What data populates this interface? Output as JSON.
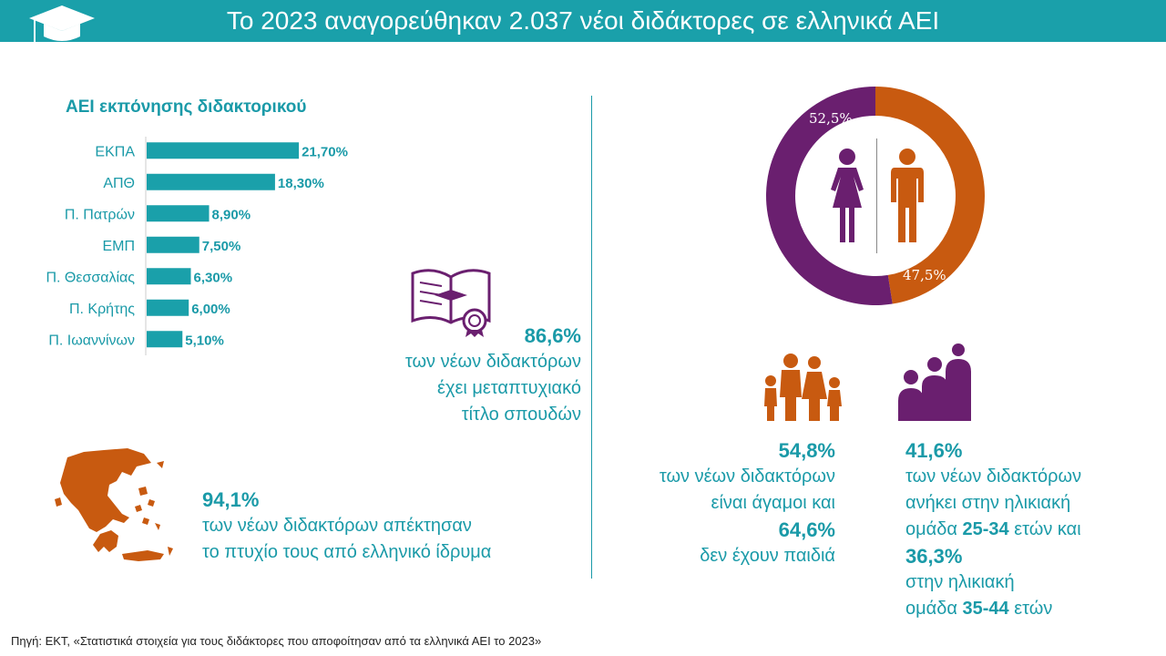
{
  "header": {
    "title": "Το 2023 αναγορεύθηκαν 2.037 νέοι διδάκτορες σε ελληνικά ΑΕΙ"
  },
  "colors": {
    "teal": "#1aa0aa",
    "purple": "#6a1f6f",
    "orange": "#c85a10"
  },
  "icons": [
    "graduation-cap-icon",
    "book-diploma-icon",
    "greece-map-icon",
    "woman-icon",
    "man-icon",
    "family-icon",
    "age-group-icon"
  ],
  "chart_data": [
    {
      "type": "bar",
      "orientation": "horizontal",
      "title": "ΑΕΙ εκπόνησης διδακτορικού",
      "categories": [
        "ΕΚΠΑ",
        "ΑΠΘ",
        "Π. Πατρών",
        "ΕΜΠ",
        "Π. Θεσσαλίας",
        "Π. Κρήτης",
        "Π. Ιωαννίνων"
      ],
      "values": [
        21.7,
        18.3,
        8.9,
        7.5,
        6.3,
        6.0,
        5.1
      ],
      "value_labels": [
        "21,70%",
        "18,30%",
        "8,90%",
        "7,50%",
        "6,30%",
        "6,00%",
        "5,10%"
      ]
    },
    {
      "type": "pie",
      "donut": true,
      "categories": [
        "Γυναίκες",
        "Άνδρες"
      ],
      "values": [
        52.5,
        47.5
      ],
      "value_labels": [
        "52,5%",
        "47,5%"
      ],
      "colors": [
        "#6a1f6f",
        "#c85a10"
      ]
    }
  ],
  "stats": {
    "masters": {
      "value": "86,6%",
      "line1": "των νέων διδακτόρων",
      "line2": "έχει μεταπτυχιακό",
      "line3": "τίτλο σπουδών"
    },
    "greek_degree": {
      "value": "94,1%",
      "line1": "των νέων διδακτόρων απέκτησαν",
      "line2": "το πτυχίο τους από ελληνικό ίδρυμα"
    },
    "family": {
      "value1": "54,8%",
      "line1": "των νέων διδακτόρων",
      "line2": "είναι άγαμοι και",
      "value2": "64,6%",
      "line3": "δεν έχουν παιδιά"
    },
    "age": {
      "value1": "41,6%",
      "line1": "των νέων διδακτόρων",
      "line2": "ανήκει στην ηλικιακή",
      "line3_pre": "ομάδα",
      "range1": "25-34",
      "line3_post": "ετών και",
      "value2": "36,3%",
      "line4": "στην ηλικιακή",
      "line5_pre": "ομάδα",
      "range2": "35-44",
      "line5_post": "ετών"
    }
  },
  "source": "Πηγή: ΕΚΤ, «Στατιστικά στοιχεία για τους διδάκτορες που αποφοίτησαν από τα ελληνικά ΑΕΙ το 2023»"
}
